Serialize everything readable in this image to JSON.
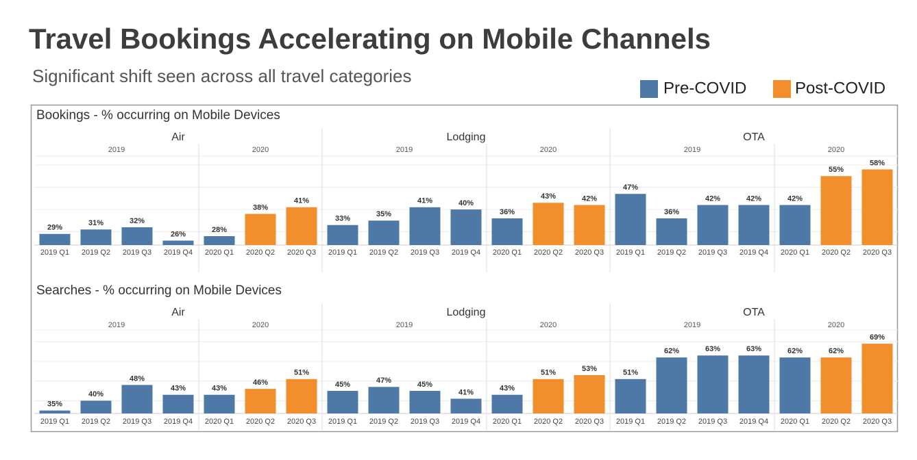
{
  "title": "Travel Bookings Accelerating on Mobile Channels",
  "subtitle": "Significant shift seen across all travel categories",
  "legend": [
    {
      "name": "Pre-COVID",
      "color": "#4e79a7"
    },
    {
      "name": "Post-COVID",
      "color": "#f28e2b"
    }
  ],
  "chart_data": [
    {
      "type": "bar",
      "title": "Bookings - % occurring on Mobile Devices",
      "ylim": [
        24,
        64
      ],
      "yticks": [
        30,
        40,
        50,
        60
      ],
      "grid": true,
      "groups": [
        {
          "name": "Air",
          "years": [
            "2019",
            "2020"
          ],
          "categories": [
            "2019 Q1",
            "2019 Q2",
            "2019 Q3",
            "2019 Q4",
            "2020 Q1",
            "2020 Q2",
            "2020 Q3"
          ],
          "series": [
            {
              "values": [
                29,
                31,
                32,
                26,
                28,
                null,
                null
              ],
              "value_labels": [
                "29%",
                "31%",
                "32%",
                "26%",
                "28%",
                null,
                null
              ]
            },
            {
              "values": [
                null,
                null,
                null,
                null,
                null,
                38,
                41
              ],
              "value_labels": [
                null,
                null,
                null,
                null,
                null,
                "38%",
                "41%"
              ]
            }
          ]
        },
        {
          "name": "Lodging",
          "years": [
            "2019",
            "2020"
          ],
          "categories": [
            "2019 Q1",
            "2019 Q2",
            "2019 Q3",
            "2019 Q4",
            "2020 Q1",
            "2020 Q2",
            "2020 Q3"
          ],
          "series": [
            {
              "values": [
                33,
                35,
                41,
                40,
                36,
                null,
                null
              ],
              "value_labels": [
                "33%",
                "35%",
                "41%",
                "40%",
                "36%",
                null,
                null
              ]
            },
            {
              "values": [
                null,
                null,
                null,
                null,
                null,
                43,
                42
              ],
              "value_labels": [
                null,
                null,
                null,
                null,
                null,
                "43%",
                "42%"
              ]
            }
          ]
        },
        {
          "name": "OTA",
          "years": [
            "2019",
            "2020"
          ],
          "categories": [
            "2019 Q1",
            "2019 Q2",
            "2019 Q3",
            "2019 Q4",
            "2020 Q1",
            "2020 Q2",
            "2020 Q3"
          ],
          "series": [
            {
              "values": [
                47,
                36,
                42,
                42,
                42,
                null,
                null
              ],
              "value_labels": [
                "47%",
                "36%",
                "42%",
                "42%",
                "42%",
                null,
                null
              ]
            },
            {
              "values": [
                null,
                null,
                null,
                null,
                null,
                55,
                58
              ],
              "value_labels": [
                null,
                null,
                null,
                null,
                null,
                "55%",
                "58%"
              ]
            }
          ]
        }
      ]
    },
    {
      "type": "bar",
      "title": "Searches - % occurring on Mobile Devices",
      "ylim": [
        33.5,
        76
      ],
      "yticks": [
        40,
        50,
        60,
        70
      ],
      "grid": true,
      "groups": [
        {
          "name": "Air",
          "years": [
            "2019",
            "2020"
          ],
          "categories": [
            "2019 Q1",
            "2019 Q2",
            "2019 Q3",
            "2019 Q4",
            "2020 Q1",
            "2020 Q2",
            "2020 Q3"
          ],
          "series": [
            {
              "values": [
                35,
                40,
                48,
                43,
                43,
                null,
                null
              ],
              "value_labels": [
                "35%",
                "40%",
                "48%",
                "43%",
                "43%",
                null,
                null
              ]
            },
            {
              "values": [
                null,
                null,
                null,
                null,
                null,
                46,
                51
              ],
              "value_labels": [
                null,
                null,
                null,
                null,
                null,
                "46%",
                "51%"
              ]
            }
          ]
        },
        {
          "name": "Lodging",
          "years": [
            "2019",
            "2020"
          ],
          "categories": [
            "2019 Q1",
            "2019 Q2",
            "2019 Q3",
            "2019 Q4",
            "2020 Q1",
            "2020 Q2",
            "2020 Q3"
          ],
          "series": [
            {
              "values": [
                45,
                47,
                45,
                41,
                43,
                null,
                null
              ],
              "value_labels": [
                "45%",
                "47%",
                "45%",
                "41%",
                "43%",
                null,
                null
              ]
            },
            {
              "values": [
                null,
                null,
                null,
                null,
                null,
                51,
                53
              ],
              "value_labels": [
                null,
                null,
                null,
                null,
                null,
                "51%",
                "53%"
              ]
            }
          ]
        },
        {
          "name": "OTA",
          "years": [
            "2019",
            "2020"
          ],
          "categories": [
            "2019 Q1",
            "2019 Q2",
            "2019 Q3",
            "2019 Q4",
            "2020 Q1",
            "2020 Q2",
            "2020 Q3"
          ],
          "series": [
            {
              "values": [
                51,
                62,
                63,
                63,
                62,
                null,
                null
              ],
              "value_labels": [
                "51%",
                "62%",
                "63%",
                "63%",
                "62%",
                null,
                null
              ]
            },
            {
              "values": [
                null,
                null,
                null,
                null,
                null,
                62,
                69
              ],
              "value_labels": [
                null,
                null,
                null,
                null,
                null,
                "62%",
                "69%"
              ]
            }
          ]
        }
      ]
    }
  ]
}
